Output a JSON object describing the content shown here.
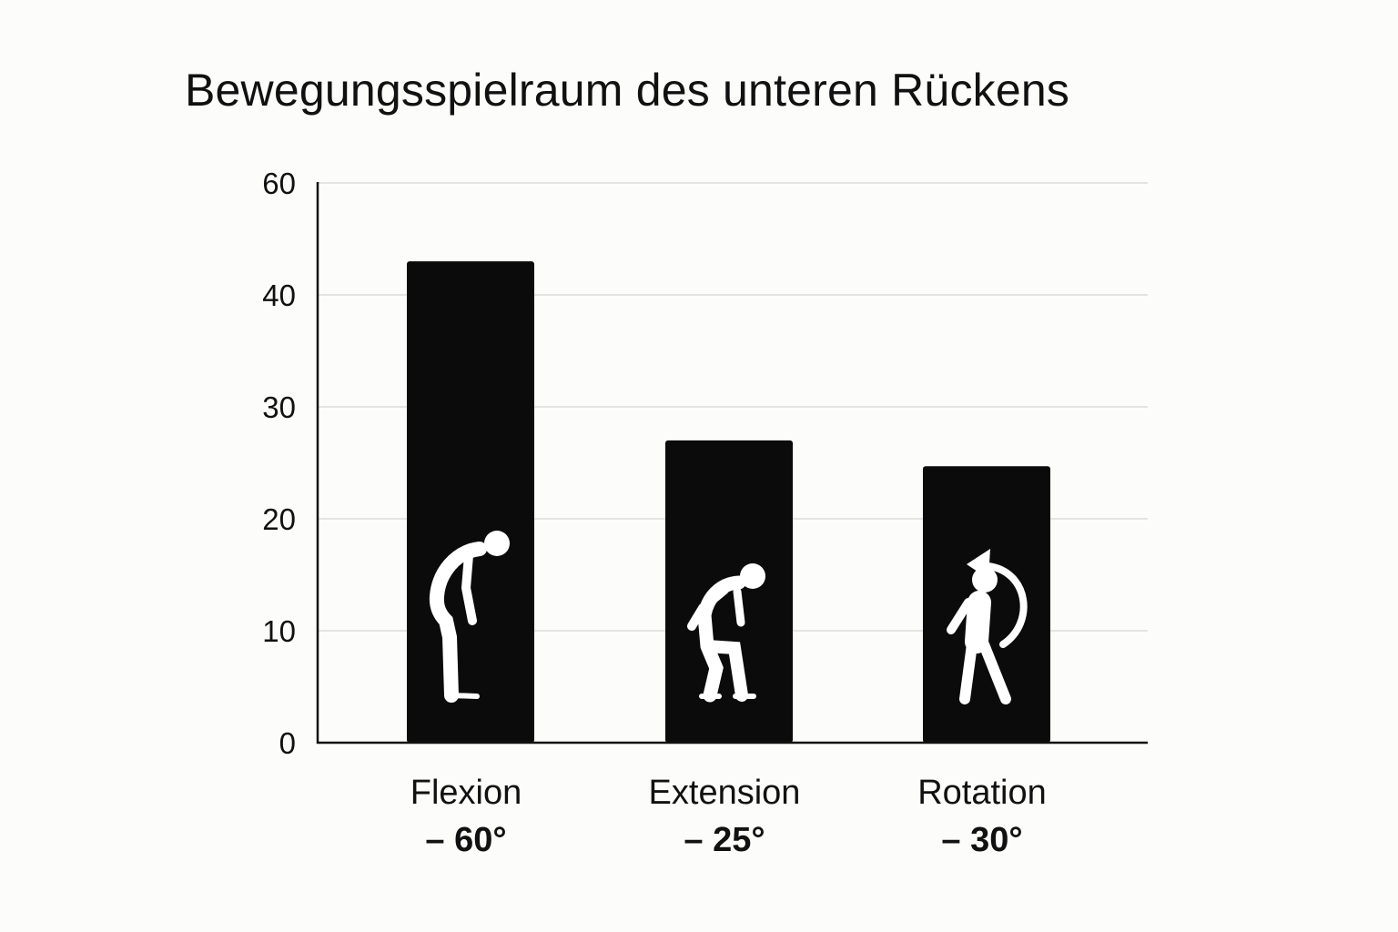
{
  "chart_data": {
    "type": "bar",
    "title": "Bewegungsspielraum des unteren Rückens",
    "categories": [
      "Flexion",
      "Extension",
      "Rotation"
    ],
    "category_values": [
      "– 60°",
      "– 25°",
      "– 30°"
    ],
    "values": [
      46,
      27,
      24.7
    ],
    "ylim": [
      0,
      60
    ],
    "yticks": [
      0,
      10,
      20,
      30,
      40,
      60
    ],
    "grid": true,
    "bar_color": "#0b0b0b",
    "icons": [
      "bending-forward-figure-icon",
      "crouching-figure-icon",
      "rotating-figure-icon"
    ]
  }
}
